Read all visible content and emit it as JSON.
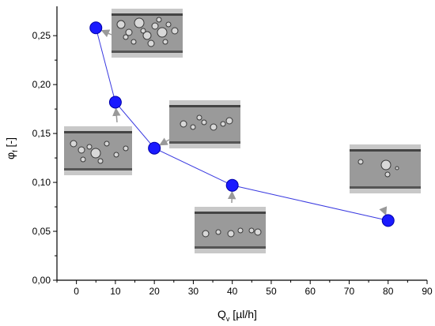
{
  "chart_data": {
    "type": "line",
    "title": "",
    "xlabel": {
      "main": "Q",
      "sub": "v",
      "unit": " [µl/h]"
    },
    "ylabel": {
      "main": "φ",
      "sub": "f",
      "unit": " [-]"
    },
    "xlim": [
      -5,
      90
    ],
    "ylim": [
      0.0,
      0.28
    ],
    "x_ticks": [
      0,
      10,
      20,
      30,
      40,
      50,
      60,
      70,
      80,
      90
    ],
    "y_ticks": [
      0.0,
      0.05,
      0.1,
      0.15,
      0.2,
      0.25
    ],
    "x_tick_labels": [
      "0",
      "10",
      "20",
      "30",
      "40",
      "50",
      "60",
      "70",
      "80",
      "90"
    ],
    "y_tick_labels": [
      "0,00",
      "0,05",
      "0,10",
      "0,15",
      "0,20",
      "0,25"
    ],
    "grid": false,
    "series": [
      {
        "x": [
          5,
          10,
          20,
          40,
          80
        ],
        "y": [
          0.258,
          0.182,
          0.135,
          0.097,
          0.061
        ],
        "color": "#1a1aff",
        "marker": "circle"
      }
    ],
    "insets": [
      {
        "point_index": 0,
        "description": "microchannel micrograph",
        "bubbles": "many"
      },
      {
        "point_index": 1,
        "description": "microchannel micrograph",
        "bubbles": "several"
      },
      {
        "point_index": 2,
        "description": "microchannel micrograph",
        "bubbles": "several"
      },
      {
        "point_index": 3,
        "description": "microchannel micrograph",
        "bubbles": "few"
      },
      {
        "point_index": 4,
        "description": "microchannel micrograph",
        "bubbles": "few"
      }
    ]
  },
  "colors": {
    "marker": "#1a1aff",
    "line": "#3a3ae0",
    "axis": "#000000",
    "arrow": "#999999",
    "channel_bg": "#9a9a9a",
    "channel_wall": "#c8c8c8"
  }
}
